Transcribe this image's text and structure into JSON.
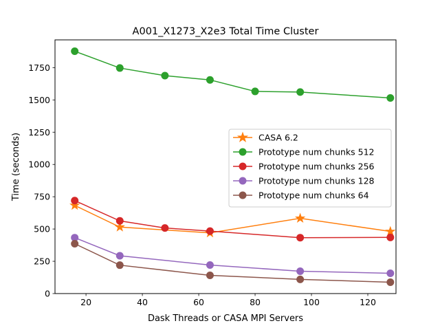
{
  "chart_data": {
    "type": "line",
    "title": "A001_X1273_X2e3 Total Time Cluster",
    "xlabel": "Dask Threads or CASA MPI Servers",
    "ylabel": "Time (seconds)",
    "xlim": [
      9,
      130
    ],
    "ylim": [
      0,
      1965
    ],
    "xticks": [
      20,
      40,
      60,
      80,
      100,
      120
    ],
    "yticks": [
      0,
      250,
      500,
      750,
      1000,
      1250,
      1500,
      1750
    ],
    "legend_position": "center-right",
    "grid": false,
    "series": [
      {
        "name": "CASA 6.2",
        "color": "#ff7f0e",
        "marker": "star",
        "x": [
          16,
          32,
          64,
          96,
          128
        ],
        "y": [
          683,
          515,
          470,
          583,
          481
        ]
      },
      {
        "name": "Prototype num chunks 512",
        "color": "#2ca02c",
        "marker": "circle",
        "x": [
          16,
          32,
          48,
          64,
          80,
          96,
          128
        ],
        "y": [
          1877,
          1747,
          1688,
          1655,
          1566,
          1561,
          1515
        ]
      },
      {
        "name": "Prototype num chunks 256",
        "color": "#d62728",
        "marker": "circle",
        "x": [
          16,
          32,
          48,
          64,
          96,
          128
        ],
        "y": [
          720,
          563,
          508,
          484,
          433,
          435
        ]
      },
      {
        "name": "Prototype num chunks 128",
        "color": "#9467bd",
        "marker": "circle",
        "x": [
          16,
          32,
          64,
          96,
          128
        ],
        "y": [
          433,
          293,
          221,
          173,
          157
        ]
      },
      {
        "name": "Prototype num chunks 64",
        "color": "#8c564b",
        "marker": "circle",
        "x": [
          16,
          32,
          64,
          96,
          128
        ],
        "y": [
          386,
          220,
          141,
          110,
          88
        ]
      }
    ]
  }
}
